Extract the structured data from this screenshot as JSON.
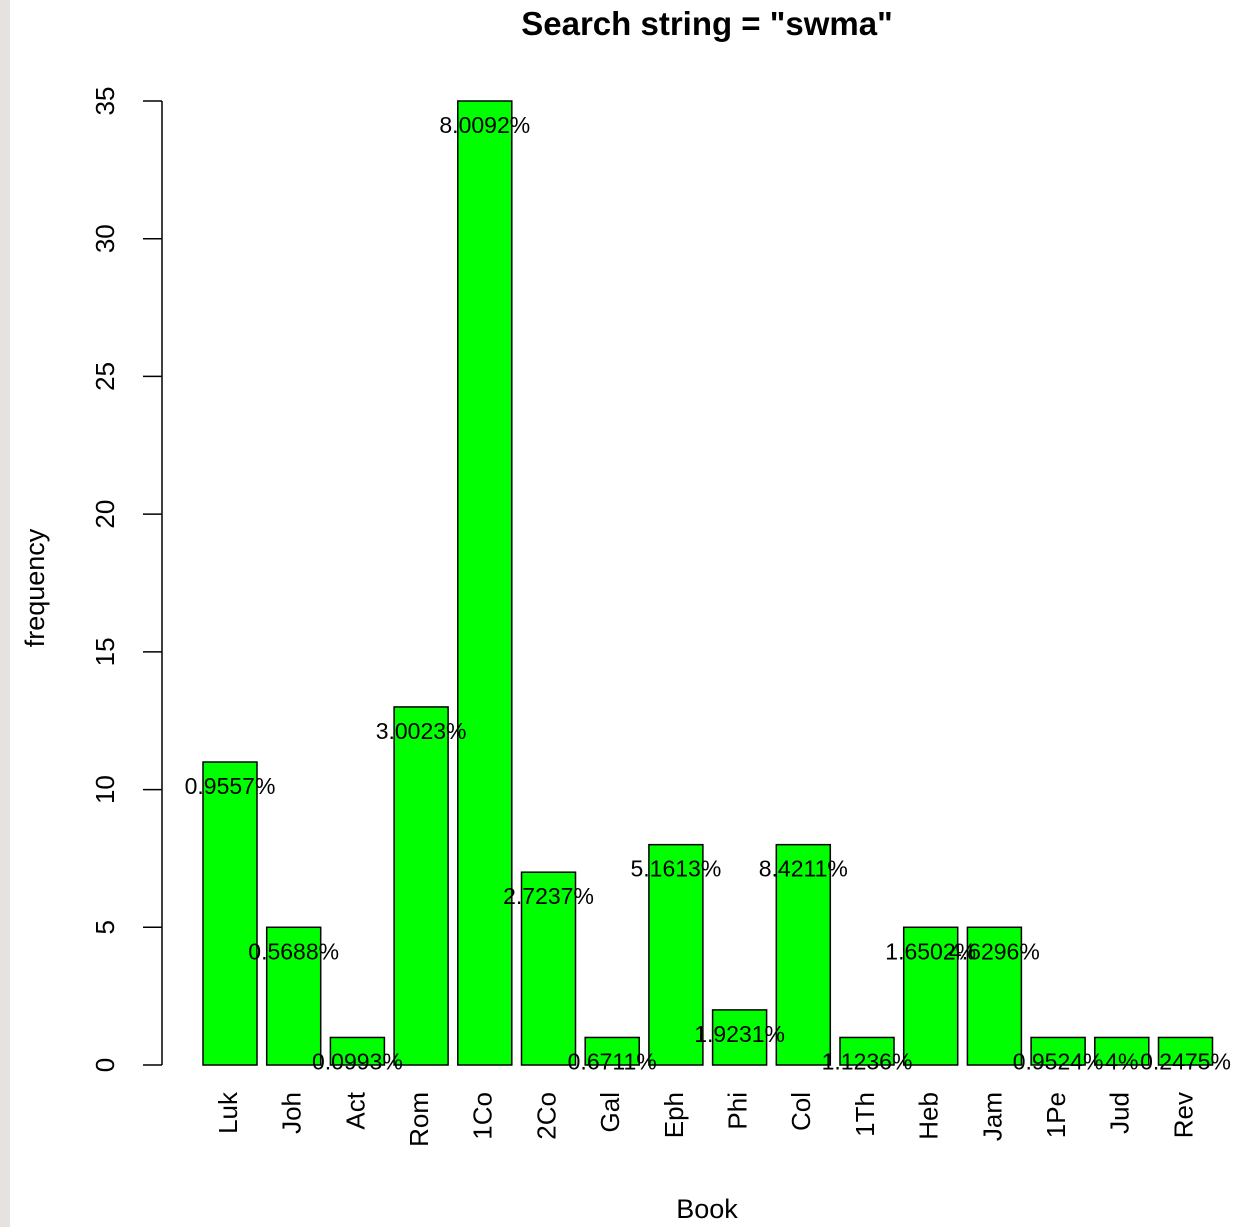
{
  "chart_data": {
    "type": "bar",
    "title": "Search string = \"swma\"",
    "xlabel": "Book",
    "ylabel": "frequency",
    "ylim": [
      0,
      35
    ],
    "yticks": [
      "0",
      "5",
      "10",
      "15",
      "20",
      "25",
      "30",
      "35"
    ],
    "categories": [
      "Luk",
      "Joh",
      "Act",
      "Rom",
      "1Co",
      "2Co",
      "Gal",
      "Eph",
      "Phi",
      "Col",
      "1Th",
      "Heb",
      "Jam",
      "1Pe",
      "Jud",
      "Rev"
    ],
    "values": [
      11,
      5,
      1,
      13,
      35,
      7,
      1,
      8,
      2,
      8,
      1,
      5,
      5,
      1,
      1,
      1
    ],
    "labels": [
      "0.9557%",
      "0.5688%",
      "0.0993%",
      "3.0023%",
      "8.0092%",
      "2.7237%",
      "0.6711%",
      "5.1613%",
      "1.9231%",
      "8.4211%",
      "1.1236%",
      "1.6502%",
      "4.6296%",
      "0.9524%",
      "4%",
      "0.2475%"
    ],
    "bar_color": "#00ff00",
    "grid": false,
    "legend": "none"
  }
}
